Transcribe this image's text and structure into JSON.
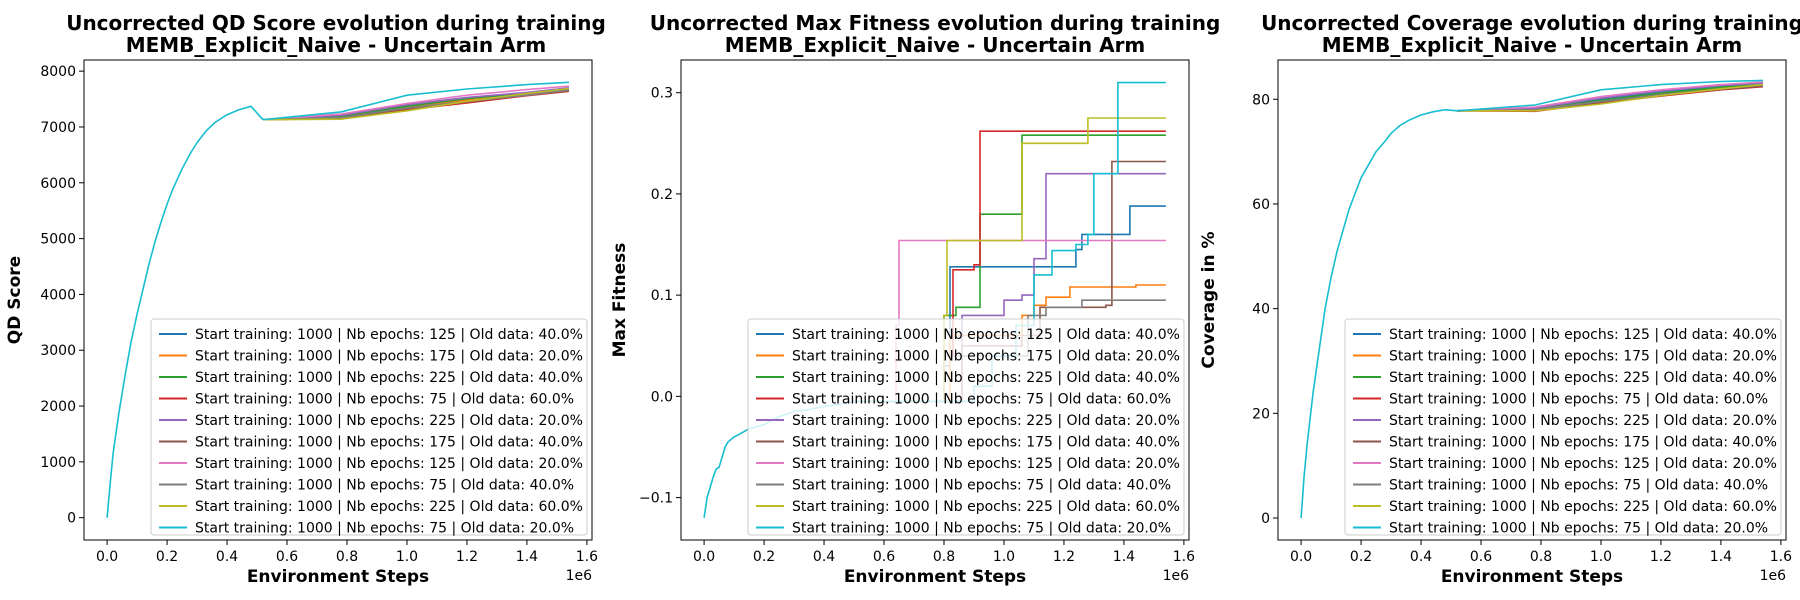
{
  "figure": {
    "width": 1800,
    "height": 600
  },
  "legend_entries": [
    {
      "label": "Start training: 1000 | Nb epochs: 125 | Old data: 40.0%",
      "color": "#1f77b4"
    },
    {
      "label": "Start training: 1000 | Nb epochs: 175 | Old data: 20.0%",
      "color": "#ff7f0e"
    },
    {
      "label": "Start training: 1000 | Nb epochs: 225 | Old data: 40.0%",
      "color": "#2ca02c"
    },
    {
      "label": "Start training: 1000 | Nb epochs: 75 | Old data: 60.0%",
      "color": "#d62728"
    },
    {
      "label": "Start training: 1000 | Nb epochs: 225 | Old data: 20.0%",
      "color": "#9467bd"
    },
    {
      "label": "Start training: 1000 | Nb epochs: 175 | Old data: 40.0%",
      "color": "#8c564b"
    },
    {
      "label": "Start training: 1000 | Nb epochs: 125 | Old data: 20.0%",
      "color": "#e377c2"
    },
    {
      "label": "Start training: 1000 | Nb epochs: 75 | Old data: 40.0%",
      "color": "#7f7f7f"
    },
    {
      "label": "Start training: 1000 | Nb epochs: 225 | Old data: 60.0%",
      "color": "#bcbd22"
    },
    {
      "label": "Start training: 1000 | Nb epochs: 75 | Old data: 20.0%",
      "color": "#17becf"
    }
  ],
  "chart_data": [
    {
      "type": "line",
      "title": [
        "Uncorrected QD Score evolution during training",
        "MEMB_Explicit_Naive - Uncertain Arm"
      ],
      "xlabel": "Environment Steps",
      "ylabel": "QD Score",
      "x_offset_text": "1e6",
      "xlim": [
        -0.077,
        1.617
      ],
      "ylim": [
        -400,
        8200
      ],
      "xticks": [
        0.0,
        0.2,
        0.4,
        0.6,
        0.8,
        1.0,
        1.2,
        1.4,
        1.6
      ],
      "xticklabels": [
        "0.0",
        "0.2",
        "0.4",
        "0.6",
        "0.8",
        "1.0",
        "1.2",
        "1.4",
        "1.6"
      ],
      "yticks": [
        0,
        1000,
        2000,
        3000,
        4000,
        5000,
        6000,
        7000,
        8000
      ],
      "yticklabels": [
        "0",
        "1000",
        "2000",
        "3000",
        "4000",
        "5000",
        "6000",
        "7000",
        "8000"
      ],
      "legend_loc": "lower-right",
      "common": {
        "x": [
          0,
          0.01,
          0.02,
          0.04,
          0.06,
          0.08,
          0.1,
          0.12,
          0.14,
          0.16,
          0.18,
          0.2,
          0.22,
          0.25,
          0.28,
          0.3,
          0.33,
          0.36,
          0.4,
          0.44,
          0.48,
          0.52
        ],
        "y": [
          0,
          600,
          1150,
          1900,
          2550,
          3150,
          3650,
          4100,
          4550,
          4950,
          5300,
          5620,
          5900,
          6250,
          6550,
          6720,
          6930,
          7080,
          7220,
          7310,
          7370,
          7130
        ]
      },
      "series": [
        {
          "x": [
            0.52,
            0.78,
            1.0,
            1.2,
            1.4,
            1.54
          ],
          "values": [
            7130,
            7200,
            7380,
            7500,
            7600,
            7680
          ]
        },
        {
          "x": [
            0.52,
            0.78,
            1.0,
            1.2,
            1.4,
            1.54
          ],
          "values": [
            7130,
            7180,
            7360,
            7480,
            7580,
            7660
          ]
        },
        {
          "x": [
            0.52,
            0.78,
            1.0,
            1.2,
            1.4,
            1.54
          ],
          "values": [
            7130,
            7190,
            7370,
            7510,
            7610,
            7700
          ]
        },
        {
          "x": [
            0.52,
            0.78,
            1.0,
            1.2,
            1.4,
            1.54
          ],
          "values": [
            7130,
            7150,
            7310,
            7430,
            7560,
            7640
          ]
        },
        {
          "x": [
            0.52,
            0.78,
            1.0,
            1.2,
            1.4,
            1.54
          ],
          "values": [
            7130,
            7210,
            7400,
            7530,
            7620,
            7700
          ]
        },
        {
          "x": [
            0.52,
            0.78,
            1.0,
            1.2,
            1.4,
            1.54
          ],
          "values": [
            7130,
            7160,
            7330,
            7450,
            7570,
            7650
          ]
        },
        {
          "x": [
            0.52,
            0.78,
            1.0,
            1.2,
            1.4,
            1.54
          ],
          "values": [
            7130,
            7230,
            7420,
            7570,
            7670,
            7730
          ]
        },
        {
          "x": [
            0.52,
            0.78,
            1.0,
            1.2,
            1.4,
            1.54
          ],
          "values": [
            7130,
            7170,
            7340,
            7460,
            7570,
            7660
          ]
        },
        {
          "x": [
            0.52,
            0.78,
            1.0,
            1.2,
            1.4,
            1.54
          ],
          "values": [
            7130,
            7140,
            7290,
            7460,
            7600,
            7690
          ]
        },
        {
          "x": [
            0.52,
            0.78,
            1.0,
            1.2,
            1.4,
            1.54
          ],
          "values": [
            7130,
            7270,
            7570,
            7680,
            7760,
            7800
          ]
        }
      ]
    },
    {
      "type": "line",
      "title": [
        "Uncorrected Max Fitness evolution during training",
        "MEMB_Explicit_Naive - Uncertain Arm"
      ],
      "xlabel": "Environment Steps",
      "ylabel": "Max Fitness",
      "x_offset_text": "1e6",
      "xlim": [
        -0.077,
        1.617
      ],
      "ylim": [
        -0.1419,
        0.3323
      ],
      "xticks": [
        0.0,
        0.2,
        0.4,
        0.6,
        0.8,
        1.0,
        1.2,
        1.4,
        1.6
      ],
      "xticklabels": [
        "0.0",
        "0.2",
        "0.4",
        "0.6",
        "0.8",
        "1.0",
        "1.2",
        "1.4",
        "1.6"
      ],
      "yticks": [
        -0.1,
        0.0,
        0.1,
        0.2,
        0.3
      ],
      "yticklabels": [
        "−0.1",
        "0.0",
        "0.1",
        "0.2",
        "0.3"
      ],
      "legend_loc": "lower-right",
      "common": {
        "x": [
          0,
          0.01,
          0.02,
          0.03,
          0.04,
          0.05,
          0.06,
          0.07,
          0.08,
          0.1,
          0.12,
          0.15,
          0.2,
          0.25,
          0.3,
          0.35,
          0.4,
          0.45,
          0.5
        ],
        "y": [
          -0.12,
          -0.1,
          -0.09,
          -0.08,
          -0.072,
          -0.07,
          -0.06,
          -0.05,
          -0.045,
          -0.04,
          -0.037,
          -0.032,
          -0.028,
          -0.02,
          -0.015,
          -0.013,
          -0.01,
          -0.008,
          -0.005
        ]
      },
      "series": [
        {
          "x": [
            0.5,
            0.8,
            0.82,
            1.04,
            1.24,
            1.26,
            1.38,
            1.42,
            1.54
          ],
          "values": [
            -0.005,
            0.03,
            0.128,
            0.128,
            0.145,
            0.16,
            0.16,
            0.188,
            0.188
          ],
          "step": true
        },
        {
          "x": [
            0.5,
            0.82,
            1.06,
            1.1,
            1.14,
            1.22,
            1.44,
            1.54
          ],
          "values": [
            -0.005,
            0.06,
            0.08,
            0.09,
            0.098,
            0.108,
            0.11,
            0.11
          ],
          "step": true
        },
        {
          "x": [
            0.5,
            0.8,
            0.84,
            0.92,
            1.0,
            1.06,
            1.54
          ],
          "values": [
            -0.005,
            0.08,
            0.088,
            0.18,
            0.18,
            0.258,
            0.258
          ],
          "step": true
        },
        {
          "x": [
            0.5,
            0.8,
            0.83,
            0.9,
            0.92,
            1.54
          ],
          "values": [
            -0.005,
            0.04,
            0.125,
            0.13,
            0.262,
            0.262
          ],
          "step": true
        },
        {
          "x": [
            0.5,
            0.86,
            1.0,
            1.06,
            1.1,
            1.14,
            1.54
          ],
          "values": [
            -0.005,
            0.08,
            0.095,
            0.1,
            0.136,
            0.22,
            0.22
          ],
          "step": true
        },
        {
          "x": [
            0.5,
            0.86,
            1.06,
            1.12,
            1.34,
            1.36,
            1.54
          ],
          "values": [
            -0.005,
            0.05,
            0.06,
            0.088,
            0.09,
            0.232,
            0.232
          ],
          "step": true
        },
        {
          "x": [
            0.5,
            0.64,
            0.65,
            1.54
          ],
          "values": [
            -0.005,
            0.07,
            0.154,
            0.154
          ],
          "step": true
        },
        {
          "x": [
            0.5,
            0.8,
            1.08,
            1.14,
            1.26,
            1.54
          ],
          "values": [
            -0.005,
            0.04,
            0.08,
            0.088,
            0.095,
            0.095
          ],
          "step": true
        },
        {
          "x": [
            0.5,
            0.8,
            0.81,
            1.04,
            1.06,
            1.26,
            1.28,
            1.54
          ],
          "values": [
            -0.005,
            0.08,
            0.154,
            0.154,
            0.25,
            0.25,
            0.275,
            0.275
          ],
          "step": true
        },
        {
          "x": [
            0.5,
            0.9,
            0.96,
            1.04,
            1.1,
            1.16,
            1.24,
            1.28,
            1.3,
            1.38,
            1.54
          ],
          "values": [
            -0.005,
            0.01,
            0.04,
            0.07,
            0.12,
            0.144,
            0.15,
            0.16,
            0.22,
            0.31,
            0.31
          ],
          "step": true
        }
      ]
    },
    {
      "type": "line",
      "title": [
        "Uncorrected Coverage evolution during training",
        "MEMB_Explicit_Naive - Uncertain Arm"
      ],
      "xlabel": "Environment Steps",
      "ylabel": "Coverage in %",
      "x_offset_text": "1e6",
      "xlim": [
        -0.077,
        1.617
      ],
      "ylim": [
        -4.2,
        87.5
      ],
      "xticks": [
        0.0,
        0.2,
        0.4,
        0.6,
        0.8,
        1.0,
        1.2,
        1.4,
        1.6
      ],
      "xticklabels": [
        "0.0",
        "0.2",
        "0.4",
        "0.6",
        "0.8",
        "1.0",
        "1.2",
        "1.4",
        "1.6"
      ],
      "yticks": [
        0,
        20,
        40,
        60,
        80
      ],
      "yticklabels": [
        "0",
        "20",
        "40",
        "60",
        "80"
      ],
      "legend_loc": "lower-right",
      "common": {
        "x": [
          0,
          0.01,
          0.02,
          0.04,
          0.06,
          0.08,
          0.1,
          0.12,
          0.14,
          0.16,
          0.18,
          0.2,
          0.22,
          0.25,
          0.28,
          0.3,
          0.33,
          0.36,
          0.4,
          0.44,
          0.48,
          0.52
        ],
        "y": [
          0,
          8,
          14,
          24,
          32,
          40,
          46,
          51,
          55,
          59,
          62,
          65,
          67,
          70,
          72,
          73.5,
          75,
          76,
          77,
          77.6,
          78,
          77.8
        ]
      },
      "series": [
        {
          "x": [
            0.52,
            0.78,
            1.0,
            1.2,
            1.4,
            1.54
          ],
          "values": [
            77.8,
            78.2,
            80,
            81.5,
            82.5,
            83
          ]
        },
        {
          "x": [
            0.52,
            0.78,
            1.0,
            1.2,
            1.4,
            1.54
          ],
          "values": [
            77.8,
            78,
            79.7,
            81,
            82.2,
            82.8
          ]
        },
        {
          "x": [
            0.52,
            0.78,
            1.0,
            1.2,
            1.4,
            1.54
          ],
          "values": [
            77.8,
            78.1,
            79.8,
            81.2,
            82.3,
            82.9
          ]
        },
        {
          "x": [
            0.52,
            0.78,
            1.0,
            1.2,
            1.4,
            1.54
          ],
          "values": [
            77.8,
            77.7,
            79.3,
            80.6,
            81.8,
            82.4
          ]
        },
        {
          "x": [
            0.52,
            0.78,
            1.0,
            1.2,
            1.4,
            1.54
          ],
          "values": [
            77.8,
            78.3,
            80.2,
            81.6,
            82.6,
            83.1
          ]
        },
        {
          "x": [
            0.52,
            0.78,
            1.0,
            1.2,
            1.4,
            1.54
          ],
          "values": [
            77.8,
            77.9,
            79.5,
            80.8,
            81.9,
            82.5
          ]
        },
        {
          "x": [
            0.52,
            0.78,
            1.0,
            1.2,
            1.4,
            1.54
          ],
          "values": [
            77.8,
            78.5,
            80.5,
            81.8,
            82.8,
            83.3
          ]
        },
        {
          "x": [
            0.52,
            0.78,
            1.0,
            1.2,
            1.4,
            1.54
          ],
          "values": [
            77.8,
            78,
            79.6,
            80.9,
            82,
            82.7
          ]
        },
        {
          "x": [
            0.52,
            0.78,
            1.0,
            1.2,
            1.4,
            1.54
          ],
          "values": [
            77.8,
            77.8,
            79.1,
            80.7,
            82,
            82.8
          ]
        },
        {
          "x": [
            0.52,
            0.78,
            1.0,
            1.2,
            1.4,
            1.54
          ],
          "values": [
            77.8,
            78.9,
            81.8,
            82.8,
            83.4,
            83.6
          ]
        }
      ]
    }
  ]
}
